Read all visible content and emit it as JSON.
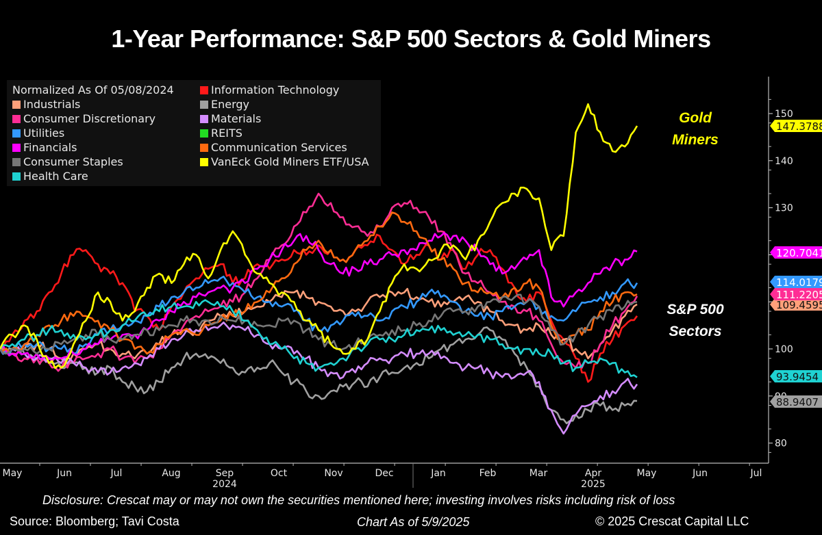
{
  "title": "1-Year Performance: S&P 500 Sectors & Gold Miners",
  "annotations": {
    "gold_miners": [
      "Gold",
      "Miners"
    ],
    "sp500_sectors": [
      "S&P 500",
      "Sectors"
    ]
  },
  "footer": {
    "disclosure": "Disclosure: Crescat may or may not own the securities mentioned here; investing involves risks including risk of loss",
    "source": "Source: Bloomberg; Tavi Costa",
    "chart_as_of": "Chart As of 5/9/2025",
    "copyright": "© 2025 Crescat Capital LLC"
  },
  "chart_data": {
    "type": "line",
    "title": "1-Year Performance: S&P 500 Sectors & Gold Miners",
    "legend_title": "Normalized As Of 05/08/2024",
    "legend_position": "top-left",
    "xlabel": "",
    "ylabel": "",
    "ylim": [
      77,
      157
    ],
    "yticks": [
      80,
      90,
      100,
      110,
      120,
      130,
      140,
      150
    ],
    "yaxis_side": "right",
    "grid": false,
    "x_range": [
      "2024-05-08",
      "2025-07-31"
    ],
    "x_month_labels": [
      "May",
      "Jun",
      "Jul",
      "Aug",
      "Sep",
      "Oct",
      "Nov",
      "Dec",
      "Jan",
      "Feb",
      "Mar",
      "Apr",
      "May",
      "Jun",
      "Jul"
    ],
    "x_year_labels": [
      {
        "label": "2024",
        "under": "Sep"
      },
      {
        "label": "2025",
        "under": "Apr"
      }
    ],
    "x_frequency": "weekly",
    "x_start": "2024-05-08",
    "x_end": "2025-05-08",
    "series": [
      {
        "name": "Information Technology",
        "color": "#ff1a1a",
        "last_value_label": null,
        "values": [
          100,
          103,
          106,
          108,
          112,
          116,
          120,
          121,
          118,
          116,
          114,
          108,
          107,
          104,
          109,
          112,
          115,
          117,
          118,
          114,
          115,
          118,
          117,
          119,
          121,
          120,
          122,
          121,
          119,
          121,
          122,
          124,
          121,
          118,
          120,
          122,
          119,
          121,
          117,
          120,
          121,
          117,
          113,
          110,
          112,
          106,
          102,
          98,
          93,
          99,
          102,
          105,
          107
        ]
      },
      {
        "name": "Industrials",
        "color": "#ffa07a",
        "last_value_label": "109.4595",
        "values": [
          100,
          99,
          100,
          101,
          100,
          98,
          99,
          100,
          101,
          100,
          99,
          98,
          99,
          101,
          103,
          104,
          104,
          106,
          107,
          107,
          108,
          109,
          110,
          111,
          112,
          111,
          110,
          109,
          108,
          108,
          110,
          111,
          112,
          112,
          111,
          110,
          109,
          110,
          111,
          110,
          108,
          106,
          105,
          104,
          105,
          103,
          102,
          100,
          98,
          101,
          104,
          107,
          109.46
        ]
      },
      {
        "name": "Energy",
        "color": "#a0a0a0",
        "last_value_label": "88.9407",
        "values": [
          100,
          100,
          99,
          98,
          97,
          96,
          97,
          96,
          95,
          96,
          93,
          92,
          91,
          93,
          96,
          98,
          99,
          98,
          97,
          96,
          95,
          96,
          97,
          95,
          93,
          91,
          90,
          91,
          92,
          93,
          92,
          94,
          95,
          96,
          97,
          98,
          100,
          101,
          102,
          103,
          104,
          102,
          99,
          96,
          92,
          87,
          85,
          86,
          87,
          88,
          87,
          88,
          88.94
        ]
      },
      {
        "name": "Consumer Discretionary",
        "color": "#ff2d95",
        "last_value_label": "111.2205",
        "values": [
          100,
          99,
          98,
          98,
          97,
          96,
          97,
          98,
          99,
          100,
          98,
          97,
          98,
          100,
          103,
          105,
          107,
          108,
          109,
          110,
          112,
          115,
          119,
          122,
          126,
          129,
          133,
          131,
          128,
          126,
          124,
          126,
          130,
          131,
          130,
          128,
          125,
          121,
          116,
          114,
          112,
          110,
          109,
          108,
          106,
          101,
          97,
          96,
          97,
          101,
          105,
          108,
          111.22
        ]
      },
      {
        "name": "Materials",
        "color": "#d48cff",
        "last_value_label": null,
        "values": [
          100,
          100,
          99,
          98,
          98,
          97,
          97,
          96,
          95,
          95,
          96,
          97,
          98,
          100,
          102,
          103,
          104,
          104,
          105,
          105,
          104,
          103,
          101,
          100,
          99,
          98,
          96,
          95,
          94,
          95,
          97,
          98,
          98,
          99,
          99,
          99,
          98,
          97,
          96,
          96,
          95,
          94,
          94,
          95,
          93,
          87,
          82,
          86,
          88,
          90,
          91,
          93,
          92.5
        ]
      },
      {
        "name": "Utilities",
        "color": "#3399ff",
        "last_value_label": "114.0179",
        "values": [
          100,
          100,
          101,
          101,
          100,
          100,
          99,
          101,
          103,
          104,
          105,
          106,
          107,
          109,
          111,
          112,
          113,
          114,
          115,
          114,
          112,
          111,
          110,
          109,
          108,
          106,
          104,
          105,
          106,
          107,
          107,
          106,
          108,
          109,
          110,
          112,
          111,
          110,
          108,
          107,
          107,
          108,
          109,
          110,
          109,
          107,
          106,
          108,
          110,
          111,
          112,
          114,
          114.02
        ]
      },
      {
        "name": "REITS",
        "color": "#22dd22",
        "last_value_label": null,
        "values": null
      },
      {
        "name": "Financials",
        "color": "#ff00ff",
        "last_value_label": "120.7041",
        "values": [
          100,
          99,
          99,
          99,
          98,
          98,
          99,
          100,
          101,
          102,
          103,
          103,
          104,
          106,
          108,
          110,
          111,
          112,
          113,
          113,
          114,
          117,
          119,
          121,
          123,
          124,
          121,
          118,
          116,
          117,
          118,
          119,
          120,
          121,
          121,
          123,
          124,
          124,
          123,
          121,
          118,
          116,
          117,
          119,
          121,
          111,
          109,
          112,
          114,
          116,
          118,
          119,
          120.7
        ]
      },
      {
        "name": "Communication Services",
        "color": "#ff6a10",
        "last_value_label": null,
        "values": [
          100,
          100,
          101,
          103,
          105,
          106,
          107,
          107,
          106,
          104,
          102,
          100,
          99,
          101,
          103,
          104,
          103,
          105,
          106,
          107,
          108,
          110,
          112,
          115,
          118,
          121,
          123,
          121,
          119,
          121,
          123,
          126,
          129,
          127,
          125,
          122,
          119,
          117,
          114,
          112,
          112,
          111,
          113,
          114,
          113,
          105,
          101,
          103,
          104,
          108,
          110,
          112,
          111.6
        ]
      },
      {
        "name": "Consumer Staples",
        "color": "#777777",
        "last_value_label": null,
        "values": [
          100,
          100,
          100,
          99,
          100,
          101,
          102,
          103,
          103,
          102,
          102,
          103,
          104,
          104,
          105,
          106,
          106,
          106,
          107,
          106,
          106,
          105,
          105,
          106,
          106,
          104,
          102,
          101,
          100,
          101,
          102,
          103,
          104,
          104,
          105,
          106,
          107,
          108,
          108,
          109,
          110,
          111,
          111,
          110,
          109,
          104,
          101,
          103,
          105,
          107,
          108,
          109,
          110
        ]
      },
      {
        "name": "Health Care",
        "color": "#1fd2d2",
        "last_value_label": "93.9454",
        "values": [
          100,
          101,
          102,
          103,
          104,
          104,
          103,
          102,
          103,
          104,
          105,
          106,
          107,
          108,
          109,
          109,
          110,
          110,
          109,
          108,
          106,
          104,
          101,
          100,
          98,
          97,
          96,
          97,
          98,
          100,
          101,
          102,
          102,
          103,
          104,
          104,
          104,
          103,
          103,
          103,
          102,
          101,
          100,
          100,
          99,
          99,
          97,
          96,
          97,
          98,
          97,
          95,
          93.95
        ]
      },
      {
        "name": "VanEck Gold Miners ETF/USA",
        "color": "#ffff00",
        "last_value_label": "147.3788",
        "values": [
          100,
          103,
          105,
          102,
          97,
          96,
          101,
          106,
          112,
          110,
          106,
          108,
          113,
          116,
          114,
          118,
          120,
          115,
          121,
          125,
          120,
          116,
          114,
          112,
          110,
          106,
          104,
          101,
          99,
          100,
          102,
          108,
          114,
          118,
          117,
          119,
          121,
          122,
          119,
          123,
          127,
          131,
          133,
          134,
          132,
          121,
          124,
          146,
          152,
          146,
          142,
          143,
          147.38
        ]
      }
    ]
  }
}
